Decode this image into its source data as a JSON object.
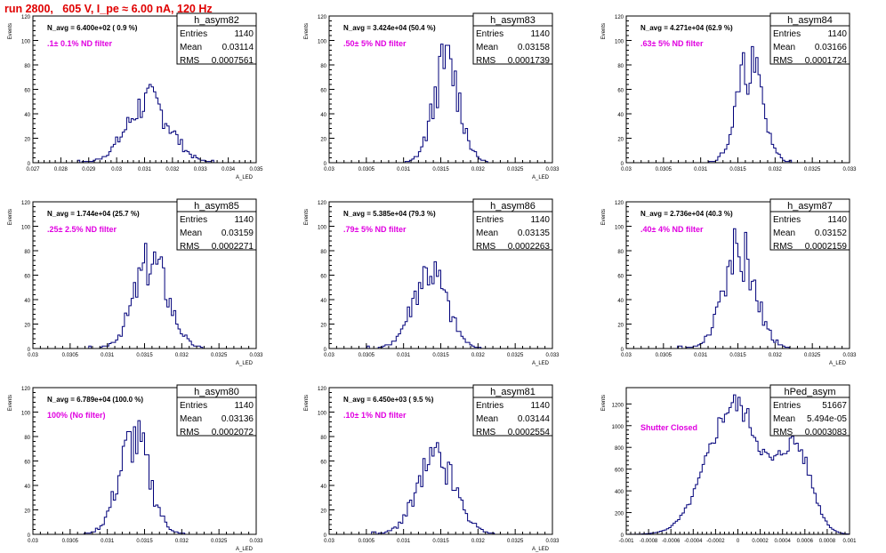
{
  "page_title": "run 2800,   605 V, I_pe ≈ 6.00 nA, 120 Hz",
  "chart_data": [
    {
      "type": "bar",
      "hist": "h_asym82",
      "stats": {
        "Entries": "1140",
        "Mean": "0.03114",
        "RMS": "0.0007561"
      },
      "navg": "N_avg = 6.400e+02 ( 0.9 %)",
      "note": ".1± 0.1% ND filter",
      "ylabel": "Events",
      "xlabel": "A_LED",
      "xlim": [
        0.027,
        0.035
      ],
      "ylim": [
        0,
        120
      ],
      "xticks": [
        0.027,
        0.028,
        0.029,
        0.03,
        0.031,
        0.032,
        0.033,
        0.034,
        0.035
      ],
      "yticks": [
        0,
        20,
        40,
        60,
        80,
        100,
        120
      ],
      "mean": 0.03114,
      "sigma": 0.00076,
      "peak": 50,
      "seed": 7
    },
    {
      "type": "bar",
      "hist": "h_asym83",
      "stats": {
        "Entries": "1140",
        "Mean": "0.03158",
        "RMS": "0.0001739"
      },
      "navg": "N_avg = 3.424e+04 (50.4 %)",
      "note": ".50± 5% ND filter",
      "ylabel": "Events",
      "xlabel": "A_LED",
      "xlim": [
        0.03,
        0.033
      ],
      "ylim": [
        0,
        120
      ],
      "xticks": [
        0.03,
        0.0305,
        0.031,
        0.0315,
        0.032,
        0.0325,
        0.033
      ],
      "yticks": [
        0,
        20,
        40,
        60,
        80,
        100,
        120
      ],
      "mean": 0.03158,
      "sigma": 0.000174,
      "peak": 82,
      "seed": 13
    },
    {
      "type": "bar",
      "hist": "h_asym84",
      "stats": {
        "Entries": "1140",
        "Mean": "0.03166",
        "RMS": "0.0001724"
      },
      "navg": "N_avg = 4.271e+04 (62.9 %)",
      "note": ".63± 5% ND filter",
      "ylabel": "Events",
      "xlabel": "",
      "xlim": [
        0.03,
        0.033
      ],
      "ylim": [
        0,
        120
      ],
      "xticks": [
        0.03,
        0.0305,
        0.031,
        0.0315,
        0.032,
        0.0325,
        0.033
      ],
      "yticks": [
        0,
        20,
        40,
        60,
        80,
        100,
        120
      ],
      "mean": 0.03166,
      "sigma": 0.000172,
      "peak": 80,
      "seed": 21
    },
    {
      "type": "bar",
      "hist": "h_asym85",
      "stats": {
        "Entries": "1140",
        "Mean": "0.03159",
        "RMS": "0.0002271"
      },
      "navg": "N_avg = 1.744e+04 (25.7 %)",
      "note": ".25± 2.5% ND filter",
      "ylabel": "Events",
      "xlabel": "A_LED",
      "xlim": [
        0.03,
        0.033
      ],
      "ylim": [
        0,
        120
      ],
      "xticks": [
        0.03,
        0.0305,
        0.031,
        0.0315,
        0.032,
        0.0325,
        0.033
      ],
      "yticks": [
        0,
        20,
        40,
        60,
        80,
        100,
        120
      ],
      "mean": 0.03159,
      "sigma": 0.000227,
      "peak": 72,
      "seed": 3
    },
    {
      "type": "bar",
      "hist": "h_asym86",
      "stats": {
        "Entries": "1140",
        "Mean": "0.03135",
        "RMS": "0.0002263"
      },
      "navg": "N_avg = 5.385e+04 (79.3 %)",
      "note": ".79± 5% ND filter",
      "ylabel": "Events",
      "xlabel": "A_LED",
      "xlim": [
        0.03,
        0.033
      ],
      "ylim": [
        0,
        120
      ],
      "xticks": [
        0.03,
        0.0305,
        0.031,
        0.0315,
        0.032,
        0.0325,
        0.033
      ],
      "yticks": [
        0,
        20,
        40,
        60,
        80,
        100,
        120
      ],
      "mean": 0.03135,
      "sigma": 0.000226,
      "peak": 62,
      "seed": 41
    },
    {
      "type": "bar",
      "hist": "h_asym87",
      "stats": {
        "Entries": "1140",
        "Mean": "0.03152",
        "RMS": "0.0002159"
      },
      "navg": "N_avg = 2.736e+04 (40.3 %)",
      "note": ".40± 4% ND filter",
      "ylabel": "Events",
      "xlabel": "A_LED",
      "xlim": [
        0.03,
        0.033
      ],
      "ylim": [
        0,
        120
      ],
      "xticks": [
        0.03,
        0.0305,
        0.031,
        0.0315,
        0.032,
        0.0325,
        0.033
      ],
      "yticks": [
        0,
        20,
        40,
        60,
        80,
        100,
        120
      ],
      "mean": 0.03152,
      "sigma": 0.000216,
      "peak": 80,
      "seed": 57
    },
    {
      "type": "bar",
      "hist": "h_asym80",
      "stats": {
        "Entries": "1140",
        "Mean": "0.03136",
        "RMS": "0.0002072"
      },
      "navg": "N_avg = 6.789e+04 (100.0 %)",
      "note": "100% (No filter)",
      "ylabel": "Events",
      "xlabel": "A_LED",
      "xlim": [
        0.03,
        0.033
      ],
      "ylim": [
        0,
        120
      ],
      "xticks": [
        0.03,
        0.0305,
        0.031,
        0.0315,
        0.032,
        0.0325,
        0.033
      ],
      "yticks": [
        0,
        20,
        40,
        60,
        80,
        100,
        120
      ],
      "mean": 0.03136,
      "sigma": 0.000207,
      "peak": 77,
      "seed": 77
    },
    {
      "type": "bar",
      "hist": "h_asym81",
      "stats": {
        "Entries": "1140",
        "Mean": "0.03144",
        "RMS": "0.0002554"
      },
      "navg": "N_avg = 6.450e+03 ( 9.5 %)",
      "note": ".10± 1% ND filter",
      "ylabel": "Events",
      "xlabel": "A_LED",
      "xlim": [
        0.03,
        0.033
      ],
      "ylim": [
        0,
        120
      ],
      "xticks": [
        0.03,
        0.0305,
        0.031,
        0.0315,
        0.032,
        0.0325,
        0.033
      ],
      "yticks": [
        0,
        20,
        40,
        60,
        80,
        100,
        120
      ],
      "mean": 0.03144,
      "sigma": 0.000255,
      "peak": 60,
      "seed": 91
    },
    {
      "type": "bar",
      "hist": "hPed_asym",
      "stats": {
        "Entries": "51667",
        "Mean": "5.494e-05",
        "RMS": "0.0003083"
      },
      "navg": "",
      "note": "Shutter Closed",
      "ylabel": "Events",
      "xlabel": "",
      "xlim": [
        -0.001,
        0.001
      ],
      "ylim": [
        0,
        1350
      ],
      "xticks": [
        -0.001,
        -0.0008,
        -0.0006,
        -0.0004,
        -0.0002,
        0,
        0.0002,
        0.0004,
        0.0006,
        0.0008,
        0.001
      ],
      "tick_labels": [
        "-0.001",
        "-0.0008",
        "-0.0006",
        "-0.0004",
        "-0.0002",
        "0",
        "0.0002",
        "0.0004",
        "0.0006",
        "0.0008",
        "0.001"
      ],
      "yticks": [
        0,
        200,
        400,
        600,
        800,
        1000,
        1200
      ],
      "mean": 5.5e-05,
      "sigma": 0.000308,
      "peak": 1300,
      "seed": 5,
      "ped": true
    }
  ]
}
